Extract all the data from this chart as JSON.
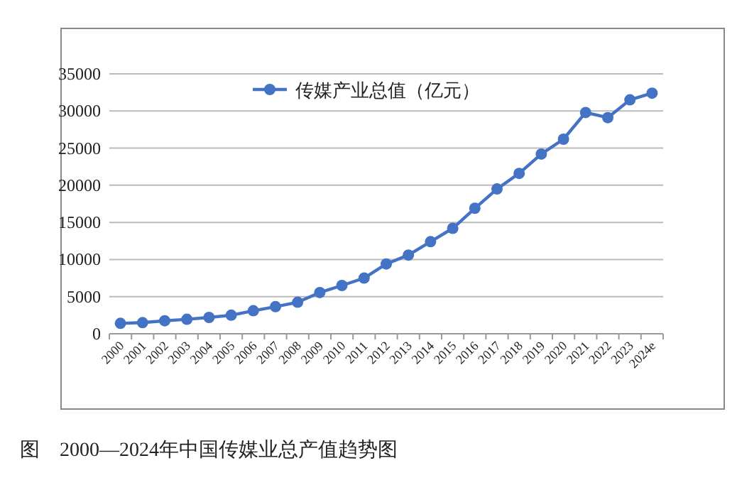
{
  "chart_data": {
    "type": "line",
    "title": "图　2000—2024年中国传媒业总产值趋势图",
    "categories": [
      "2000",
      "2001",
      "2002",
      "2003",
      "2004",
      "2005",
      "2006",
      "2007",
      "2008",
      "2009",
      "2010",
      "2011",
      "2012",
      "2013",
      "2014",
      "2015",
      "2016",
      "2017",
      "2018",
      "2019",
      "2020",
      "2021",
      "2022",
      "2023",
      "2024e"
    ],
    "series": [
      {
        "name": "传媒产业总值（亿元）",
        "color": "#4472c4",
        "values": [
          1400,
          1500,
          1750,
          1950,
          2200,
          2500,
          3100,
          3650,
          4250,
          5550,
          6500,
          7500,
          9400,
          10600,
          12400,
          14200,
          16900,
          19500,
          21600,
          24200,
          26200,
          29800,
          29100,
          31500,
          32400
        ]
      }
    ],
    "ylim": [
      0,
      35000
    ],
    "yticks": [
      0,
      5000,
      10000,
      15000,
      20000,
      25000,
      30000,
      35000
    ],
    "grid": "y",
    "legend": "top",
    "marker": "circle",
    "line_style": "solid"
  }
}
